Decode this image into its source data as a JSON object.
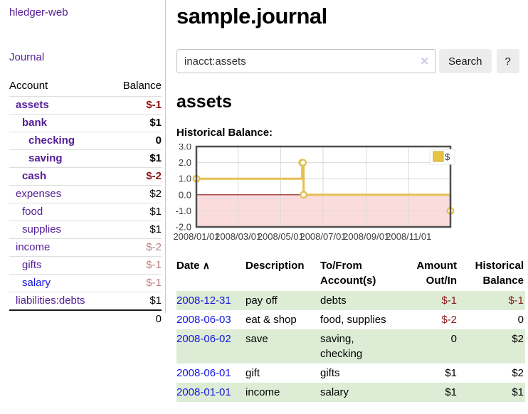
{
  "sidebar": {
    "app_title": "hledger-web",
    "journal_link": "Journal",
    "accounts_table": {
      "account_header": "Account",
      "balance_header": "Balance",
      "rows": [
        {
          "name": "assets",
          "balance": "$-1",
          "indent": 1,
          "bold": true,
          "tone": "strong"
        },
        {
          "name": "bank",
          "balance": "$1",
          "indent": 2,
          "bold": true
        },
        {
          "name": "checking",
          "balance": "0",
          "indent": 3,
          "bold": true
        },
        {
          "name": "saving",
          "balance": "$1",
          "indent": 3,
          "bold": true
        },
        {
          "name": "cash",
          "balance": "$-2",
          "indent": 2,
          "bold": true,
          "tone": "strong"
        },
        {
          "name": "expenses",
          "balance": "$2",
          "indent": 1,
          "bold": false
        },
        {
          "name": "food",
          "balance": "$1",
          "indent": 2,
          "bold": false
        },
        {
          "name": "supplies",
          "balance": "$1",
          "indent": 2,
          "bold": false
        },
        {
          "name": "income",
          "balance": "$-2",
          "indent": 1,
          "bold": false,
          "tone": "muted"
        },
        {
          "name": "gifts",
          "balance": "$-1",
          "indent": 2,
          "bold": false,
          "tone": "muted"
        },
        {
          "name": "salary",
          "balance": "$-1",
          "indent": 2,
          "bold": false,
          "tone": "muted",
          "visited": false
        },
        {
          "name": "liabilities:debts",
          "balance": "$1",
          "indent": 1,
          "bold": false
        }
      ],
      "total": "0"
    }
  },
  "main": {
    "title": "sample.journal",
    "search": {
      "query": "inacct:assets",
      "clear_icon": "✕",
      "search_button": "Search",
      "help_button": "?"
    },
    "account_heading": "assets",
    "chart_label": "Historical Balance:"
  },
  "chart_data": {
    "type": "line",
    "step": true,
    "title": "Historical Balance:",
    "xlabel": "",
    "ylabel": "",
    "legend": [
      {
        "label": "$",
        "color": "#e8c340",
        "border": "#c9a42e"
      }
    ],
    "legend_position": "top-right",
    "grid": true,
    "xlim": [
      "2008-01-01",
      "2008-12-31"
    ],
    "ylim": [
      -2.0,
      3.0
    ],
    "x_ticks": [
      "2008/01/01",
      "2008/03/01",
      "2008/05/01",
      "2008/07/01",
      "2008/09/01",
      "2008/11/01"
    ],
    "y_ticks": [
      3.0,
      2.0,
      1.0,
      0.0,
      -1.0,
      -2.0
    ],
    "points": [
      {
        "date": "2008-01-01",
        "value": 1
      },
      {
        "date": "2008-06-01",
        "value": 2
      },
      {
        "date": "2008-06-02",
        "value": 2
      },
      {
        "date": "2008-06-03",
        "value": 0
      },
      {
        "date": "2008-12-31",
        "value": -1
      }
    ],
    "colors": {
      "line": "#e5c050",
      "marker_fill": "#ffffff",
      "negative_fill": "#fbdcdc",
      "zero_line": "#8c1414",
      "grid": "#d9d9d9",
      "border": "#4f4f4f"
    }
  },
  "register": {
    "headers": {
      "date": "Date",
      "sort_icon": "∧",
      "description": "Description",
      "accounts": "To/From Account(s)",
      "amount": "Amount Out/In",
      "balance": "Historical Balance"
    },
    "rows": [
      {
        "date": "2008-12-31",
        "description": "pay off",
        "accounts": "debts",
        "amount": "$-1",
        "balance": "$-1"
      },
      {
        "date": "2008-06-03",
        "description": "eat & shop",
        "accounts": "food, supplies",
        "amount": "$-2",
        "balance": "0"
      },
      {
        "date": "2008-06-02",
        "description": "save",
        "accounts": "saving, checking",
        "amount": "0",
        "balance": "$2"
      },
      {
        "date": "2008-06-01",
        "description": "gift",
        "accounts": "gifts",
        "amount": "$1",
        "balance": "$2"
      },
      {
        "date": "2008-01-01",
        "description": "income",
        "accounts": "salary",
        "amount": "$1",
        "balance": "$1"
      }
    ]
  }
}
